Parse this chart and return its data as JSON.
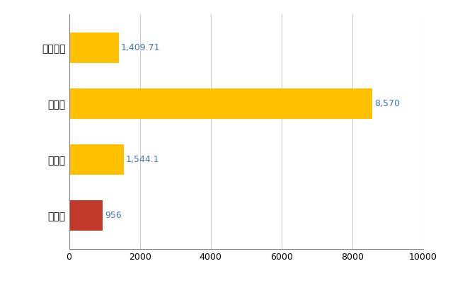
{
  "categories": [
    "平戸市",
    "県平均",
    "県最大",
    "全国平均"
  ],
  "values": [
    956,
    1544.1,
    8570,
    1409.71
  ],
  "bar_colors": [
    "#C0392B",
    "#FFC000",
    "#FFC000",
    "#FFC000"
  ],
  "value_labels": [
    "956",
    "1,544.1",
    "8,570",
    "1,409.71"
  ],
  "xlim": [
    0,
    10000
  ],
  "xticks": [
    0,
    2000,
    4000,
    6000,
    8000,
    10000
  ],
  "background_color": "#FFFFFF",
  "grid_color": "#CCCCCC",
  "bar_height": 0.55,
  "label_fontsize": 10,
  "tick_fontsize": 9,
  "value_label_color": "#4472C4",
  "value_label_fontsize": 9
}
